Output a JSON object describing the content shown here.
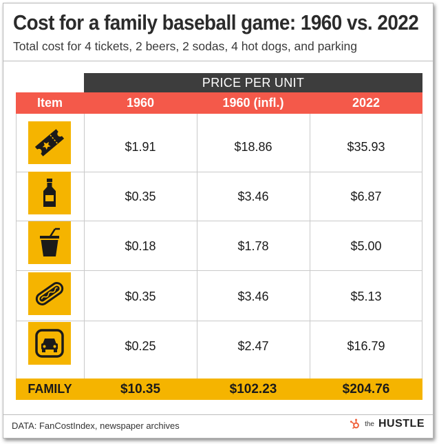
{
  "chart_data": {
    "type": "table",
    "title": "Cost for a family baseball game: 1960 vs. 2022",
    "subtitle": "Total cost for 4 tickets, 2 beers, 2 sodas, 4 hot dogs, and parking",
    "group_header": "PRICE PER UNIT",
    "columns": [
      "Item",
      "1960",
      "1960 (infl.)",
      "2022"
    ],
    "rows": [
      {
        "item": "ticket",
        "icon": "ticket-icon",
        "values": [
          "$1.91",
          "$18.86",
          "$35.93"
        ]
      },
      {
        "item": "beer",
        "icon": "beer-bottle-icon",
        "values": [
          "$0.35",
          "$3.46",
          "$6.87"
        ]
      },
      {
        "item": "soda",
        "icon": "soda-cup-icon",
        "values": [
          "$0.18",
          "$1.78",
          "$5.00"
        ]
      },
      {
        "item": "hot dog",
        "icon": "hot-dog-icon",
        "values": [
          "$0.35",
          "$3.46",
          "$5.13"
        ]
      },
      {
        "item": "parking",
        "icon": "car-icon",
        "values": [
          "$0.25",
          "$2.47",
          "$16.79"
        ]
      }
    ],
    "total": {
      "label": "FAMILY",
      "values": [
        "$10.35",
        "$102.23",
        "$204.76"
      ]
    }
  },
  "footer": {
    "source": "DATA: FanCostIndex, newspaper archives",
    "brand_prefix": "the",
    "brand_name": "HUSTLE",
    "brand_icon": "hubspot-sprocket-icon"
  },
  "colors": {
    "header_red": "#f4594a",
    "dark_bar": "#3d3d3d",
    "accent_yellow": "#f5b400",
    "brand_orange": "#f0613a"
  }
}
